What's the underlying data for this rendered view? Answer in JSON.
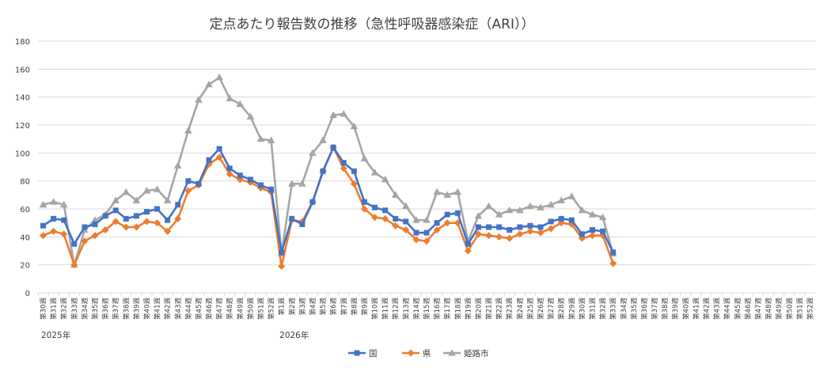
{
  "chart_data": {
    "type": "line",
    "title": "定点あたり報告数の推移（急性呼吸器感染症（ARI））",
    "xlabel": "",
    "ylabel": "",
    "ylim": [
      0,
      180
    ],
    "yticks": [
      0,
      20,
      40,
      60,
      80,
      100,
      120,
      140,
      160,
      180
    ],
    "grid": true,
    "legend_position": "bottom",
    "categories": [
      "第30週",
      "第31週",
      "第32週",
      "第33週",
      "第34週",
      "第35週",
      "第36週",
      "第37週",
      "第38週",
      "第39週",
      "第40週",
      "第41週",
      "第42週",
      "第43週",
      "第44週",
      "第45週",
      "第46週",
      "第47週",
      "第48週",
      "第49週",
      "第50週",
      "第51週",
      "第52週",
      "第1週",
      "第2週",
      "第3週",
      "第4週",
      "第5週",
      "第6週",
      "第7週",
      "第8週",
      "第9週",
      "第10週",
      "第11週",
      "第12週",
      "第13週",
      "第14週",
      "第15週",
      "第16週",
      "第17週",
      "第18週",
      "第19週",
      "第20週",
      "第21週",
      "第22週",
      "第23週",
      "第24週",
      "第25週",
      "第26週",
      "第27週",
      "第28週",
      "第29週",
      "第30週",
      "第31週",
      "第32週",
      "第33週",
      "第34週",
      "第35週",
      "第36週",
      "第37週",
      "第38週",
      "第39週",
      "第40週",
      "第41週",
      "第42週",
      "第43週",
      "第44週",
      "第45週",
      "第46週",
      "第47週",
      "第48週",
      "第49週",
      "第50週",
      "第51週",
      "第52週"
    ],
    "year_labels": [
      {
        "text": "2025年",
        "category_index": 0
      },
      {
        "text": "2026年",
        "category_index": 23
      }
    ],
    "series": [
      {
        "name": "国",
        "color": "#4472C4",
        "marker": "square",
        "values": [
          48,
          53,
          52,
          35,
          47,
          49,
          55,
          59,
          53,
          55,
          58,
          60,
          52,
          63,
          80,
          78,
          95,
          103,
          89,
          84,
          81,
          77,
          74,
          29,
          53,
          49,
          65,
          87,
          104,
          93,
          87,
          65,
          61,
          59,
          53,
          51,
          43,
          43,
          50,
          56,
          57,
          35,
          47,
          47,
          47,
          45,
          47,
          48,
          47,
          51,
          53,
          52,
          42,
          45,
          44,
          29,
          null,
          null,
          null,
          null,
          null,
          null,
          null,
          null,
          null,
          null,
          null,
          null,
          null,
          null,
          null,
          null,
          null,
          null,
          null
        ]
      },
      {
        "name": "県",
        "color": "#ED7D31",
        "marker": "diamond",
        "values": [
          41,
          44,
          42,
          20,
          37,
          41,
          45,
          51,
          47,
          47,
          51,
          50,
          44,
          53,
          73,
          77,
          92,
          97,
          85,
          81,
          79,
          75,
          72,
          19,
          52,
          51,
          65,
          87,
          104,
          89,
          78,
          60,
          54,
          53,
          48,
          45,
          38,
          37,
          45,
          50,
          50,
          30,
          42,
          41,
          40,
          39,
          42,
          44,
          43,
          46,
          50,
          49,
          39,
          41,
          41,
          21,
          null,
          null,
          null,
          null,
          null,
          null,
          null,
          null,
          null,
          null,
          null,
          null,
          null,
          null,
          null,
          null,
          null,
          null,
          null
        ]
      },
      {
        "name": "姫路市",
        "color": "#A5A5A5",
        "marker": "triangle",
        "values": [
          63,
          65,
          63,
          20,
          45,
          52,
          56,
          66,
          72,
          66,
          73,
          74,
          66,
          91,
          116,
          138,
          149,
          154,
          139,
          135,
          126,
          110,
          109,
          28,
          78,
          78,
          100,
          109,
          127,
          128,
          119,
          96,
          86,
          81,
          70,
          62,
          52,
          52,
          72,
          70,
          72,
          37,
          55,
          62,
          56,
          59,
          59,
          62,
          61,
          63,
          66,
          69,
          59,
          56,
          54,
          28,
          null,
          null,
          null,
          null,
          null,
          null,
          null,
          null,
          null,
          null,
          null,
          null,
          null,
          null,
          null,
          null,
          null,
          null,
          null
        ]
      }
    ]
  }
}
